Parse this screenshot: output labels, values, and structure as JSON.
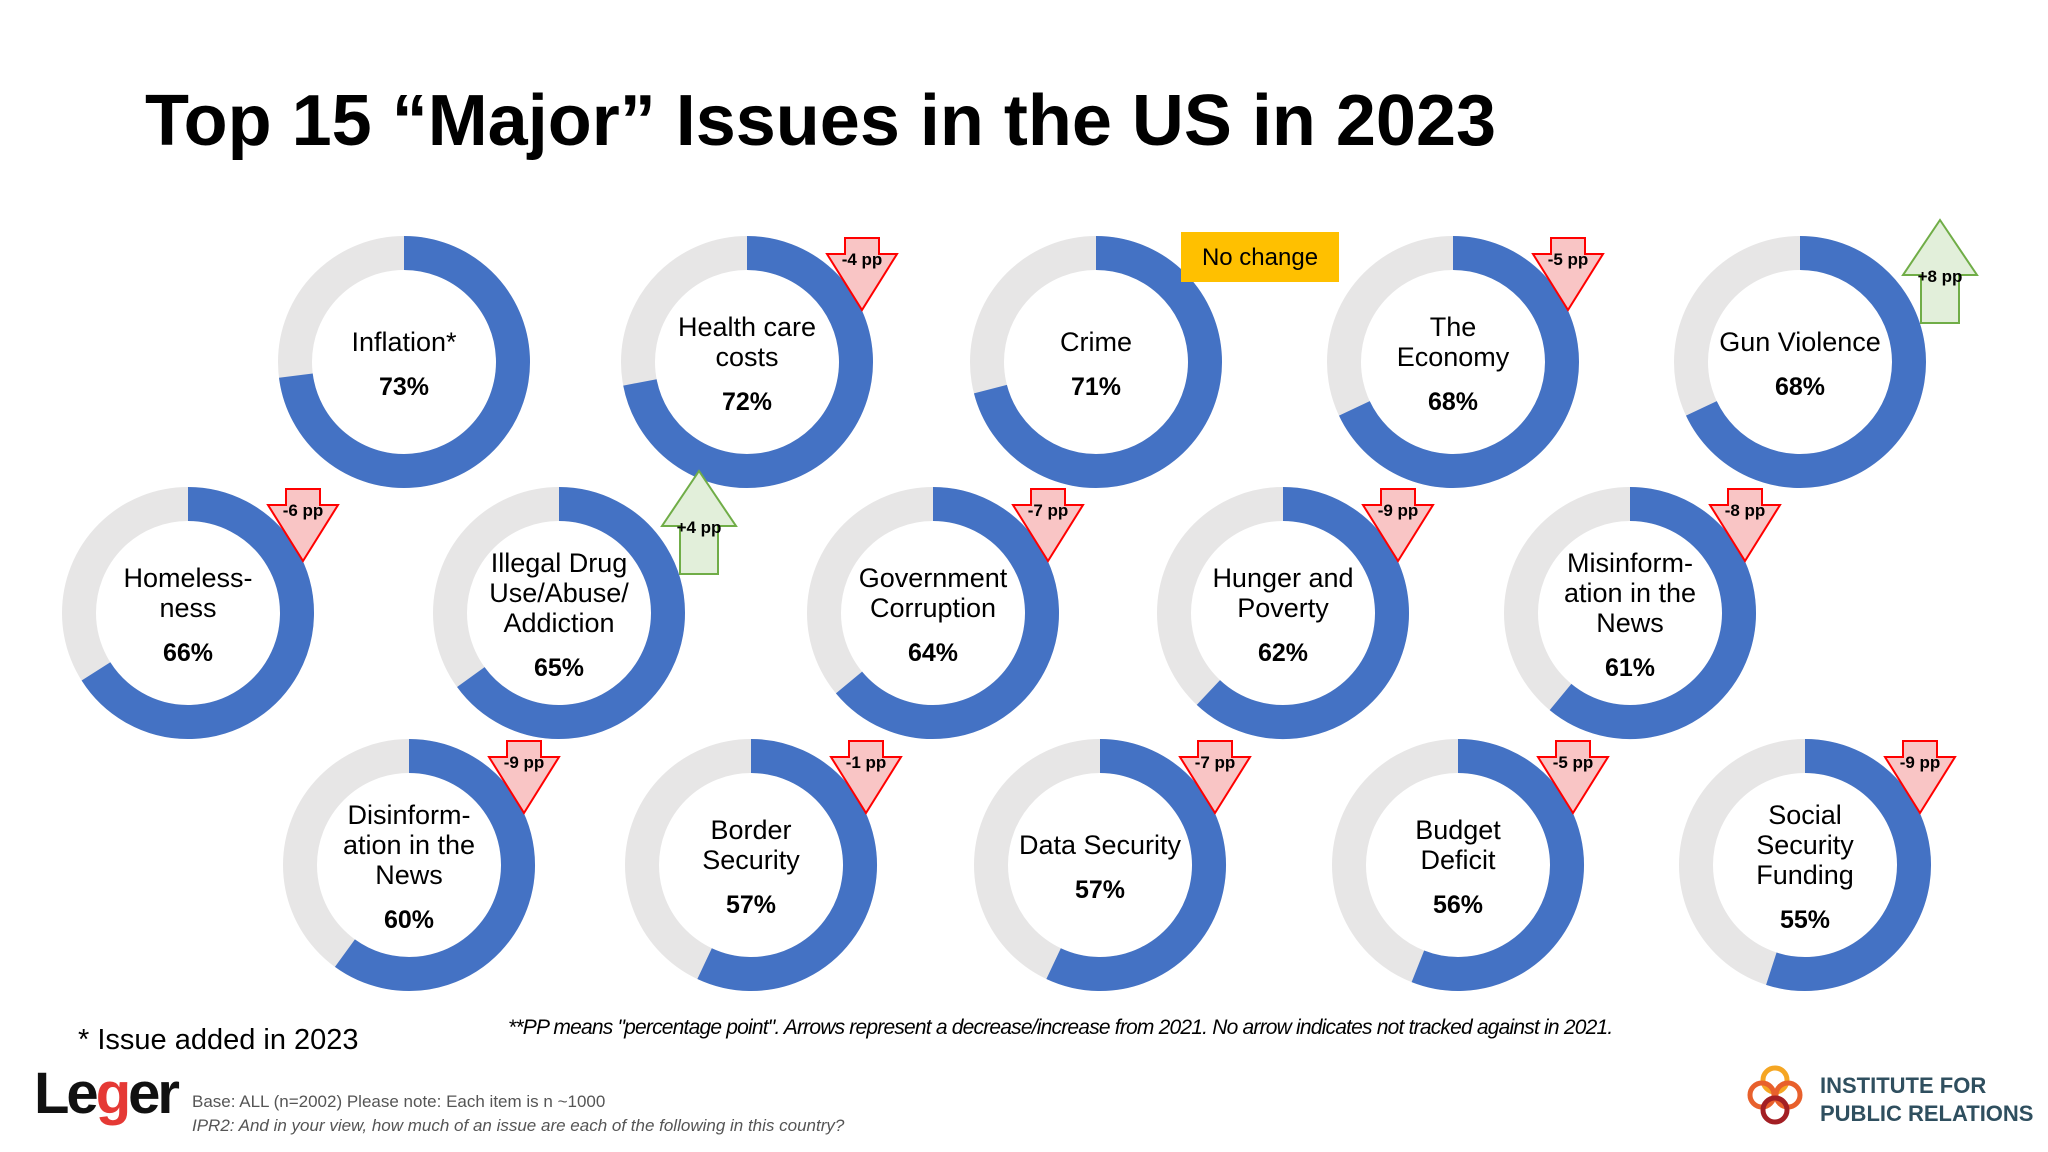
{
  "title": "Top 15 “Major” Issues in the US in 2023",
  "footnote_added": "* Issue added in 2023",
  "pp_note": "**PP means \"percentage point\". Arrows represent  a decrease/increase  from 2021. No arrow indicates not tracked against in 2021.",
  "base_text": "Base: ALL (n=2002) Please note: Each item is n ~1000",
  "question_text": "IPR2: And in your view, how much of an issue are each of the following in this country?",
  "logos": {
    "leger": "Leger",
    "ipr_line1": "INSTITUTE FOR",
    "ipr_line2": "PUBLIC RELATIONS"
  },
  "colors": {
    "filled": "#4472C4",
    "remaining": "#E7E6E6",
    "decrease": "#FF0000",
    "increase": "#70AD47",
    "no_change": "#FFC000"
  },
  "chart_data": {
    "type": "donut",
    "unit": "%",
    "items": [
      {
        "label": [
          "Inflation*"
        ],
        "value": 73,
        "change": null,
        "change_label": ""
      },
      {
        "label": [
          "Health care",
          "costs"
        ],
        "value": 72,
        "change": -4,
        "change_label": "-4 pp"
      },
      {
        "label": [
          "Crime"
        ],
        "value": 71,
        "change": 0,
        "change_label": "No change"
      },
      {
        "label": [
          "The",
          "Economy"
        ],
        "value": 68,
        "change": -5,
        "change_label": "-5 pp"
      },
      {
        "label": [
          "Gun Violence"
        ],
        "value": 68,
        "change": 8,
        "change_label": "+8 pp"
      },
      {
        "label": [
          "Homeless-",
          "ness"
        ],
        "value": 66,
        "change": -6,
        "change_label": "-6 pp"
      },
      {
        "label": [
          "Illegal Drug",
          "Use/Abuse/",
          "Addiction"
        ],
        "value": 65,
        "change": 4,
        "change_label": "+4 pp"
      },
      {
        "label": [
          "Government",
          "Corruption"
        ],
        "value": 64,
        "change": -7,
        "change_label": "-7 pp"
      },
      {
        "label": [
          "Hunger and",
          "Poverty"
        ],
        "value": 62,
        "change": -9,
        "change_label": "-9 pp"
      },
      {
        "label": [
          "Misinform-",
          "ation in the",
          "News"
        ],
        "value": 61,
        "change": -8,
        "change_label": "-8 pp"
      },
      {
        "label": [
          "Disinform-",
          "ation in the",
          "News"
        ],
        "value": 60,
        "change": -9,
        "change_label": "-9 pp"
      },
      {
        "label": [
          "Border",
          "Security"
        ],
        "value": 57,
        "change": -1,
        "change_label": "-1 pp"
      },
      {
        "label": [
          "Data Security"
        ],
        "value": 57,
        "change": -7,
        "change_label": "-7 pp"
      },
      {
        "label": [
          "Budget",
          "Deficit"
        ],
        "value": 56,
        "change": -5,
        "change_label": "-5 pp"
      },
      {
        "label": [
          "Social",
          "Security",
          "Funding"
        ],
        "value": 55,
        "change": -9,
        "change_label": "-9 pp"
      }
    ]
  }
}
